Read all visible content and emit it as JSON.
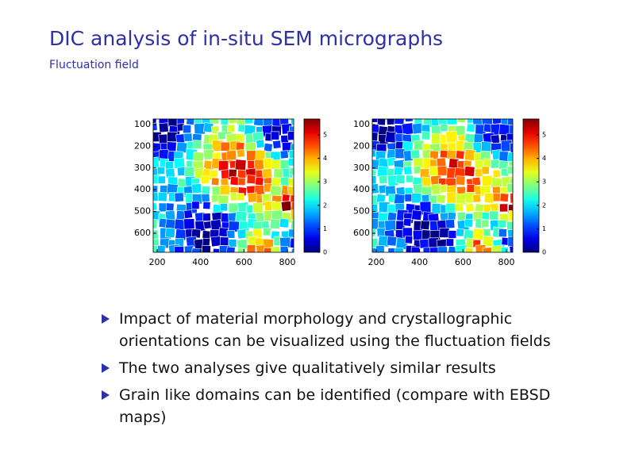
{
  "header": {
    "title": "DIC analysis of in-situ SEM micrographs",
    "subtitle": "Fluctuation field"
  },
  "figures": [
    {
      "xticks": [
        200,
        400,
        600,
        800
      ],
      "yticks": [
        100,
        200,
        300,
        400,
        500,
        600
      ],
      "colorbar_ticks": [
        0,
        1,
        2,
        3,
        4,
        5
      ]
    },
    {
      "xticks": [
        200,
        400,
        600,
        800
      ],
      "yticks": [
        100,
        200,
        300,
        400,
        500,
        600
      ],
      "colorbar_ticks": [
        0,
        1,
        2,
        3,
        4,
        5
      ]
    }
  ],
  "bullets": [
    "Impact of material morphology and crystallographic orientations can be visualized using the fluctuation fields",
    "The two analyses give qualitatively similar results",
    "Grain like domains can be identified (compare with EBSD maps)"
  ]
}
